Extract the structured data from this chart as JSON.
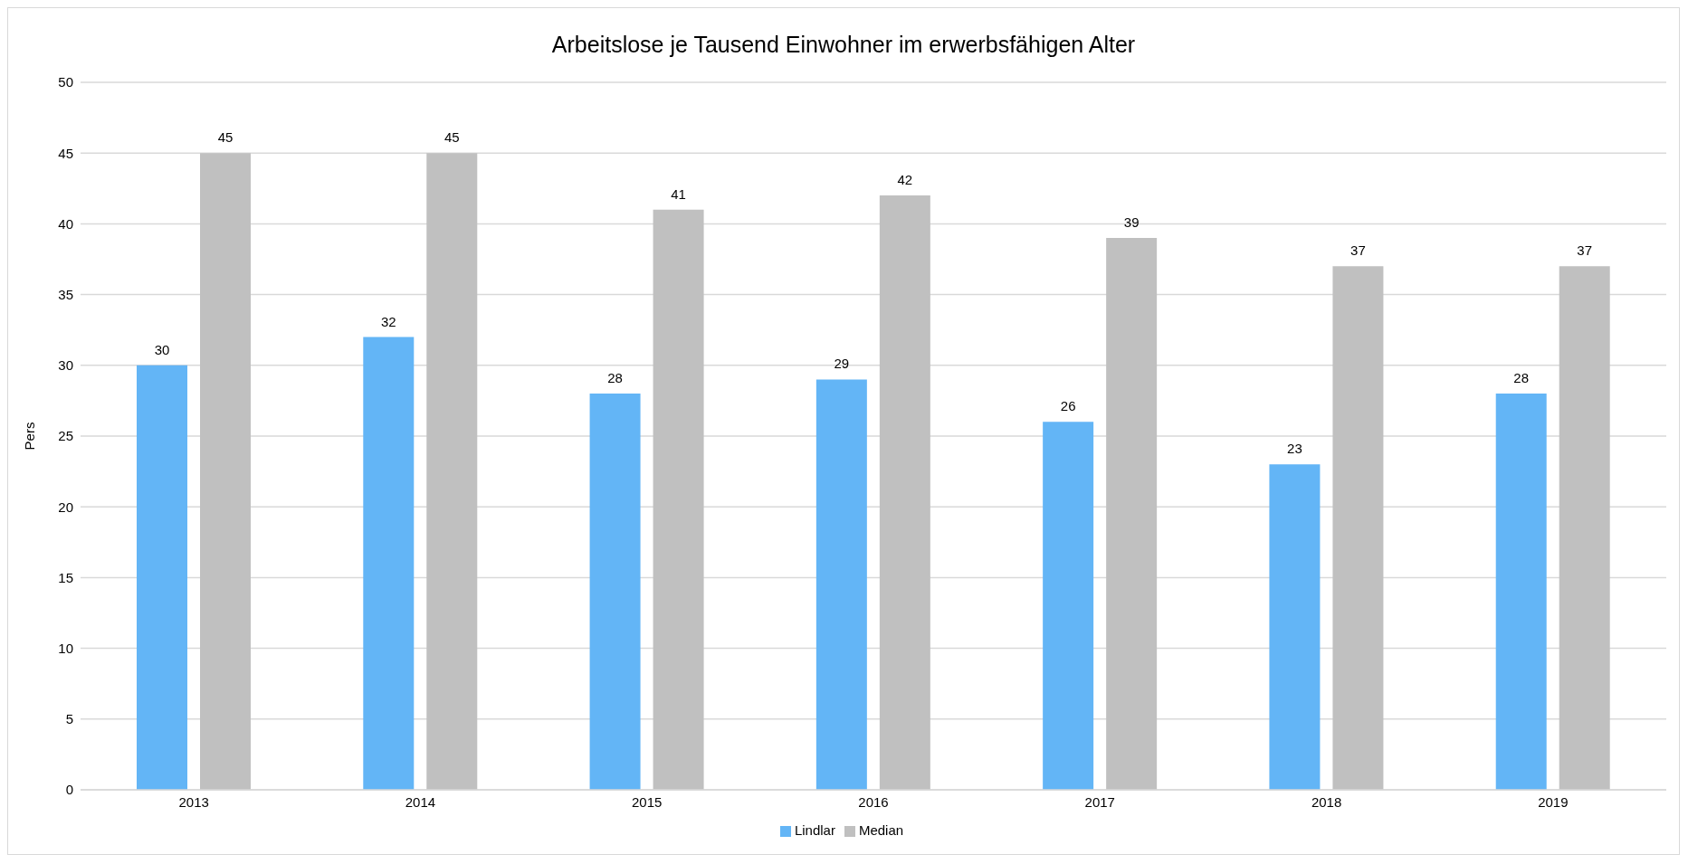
{
  "chart_data": {
    "type": "bar",
    "title": "Arbeitslose je Tausend Einwohner im erwerbsfähigen Alter",
    "ylabel": "Pers",
    "categories": [
      "2013",
      "2014",
      "2015",
      "2016",
      "2017",
      "2018",
      "2019"
    ],
    "series": [
      {
        "name": "Lindlar",
        "color": "#63b5f6",
        "values": [
          30,
          32,
          28,
          29,
          26,
          23,
          28
        ]
      },
      {
        "name": "Median",
        "color": "#c0c0c0",
        "values": [
          45,
          45,
          41,
          42,
          39,
          37,
          37
        ]
      }
    ],
    "ylim": [
      0,
      50
    ],
    "yticks": [
      0,
      5,
      10,
      15,
      20,
      25,
      30,
      35,
      40,
      45,
      50
    ],
    "grid": "y",
    "legend": "bottom",
    "data_labels": true
  }
}
